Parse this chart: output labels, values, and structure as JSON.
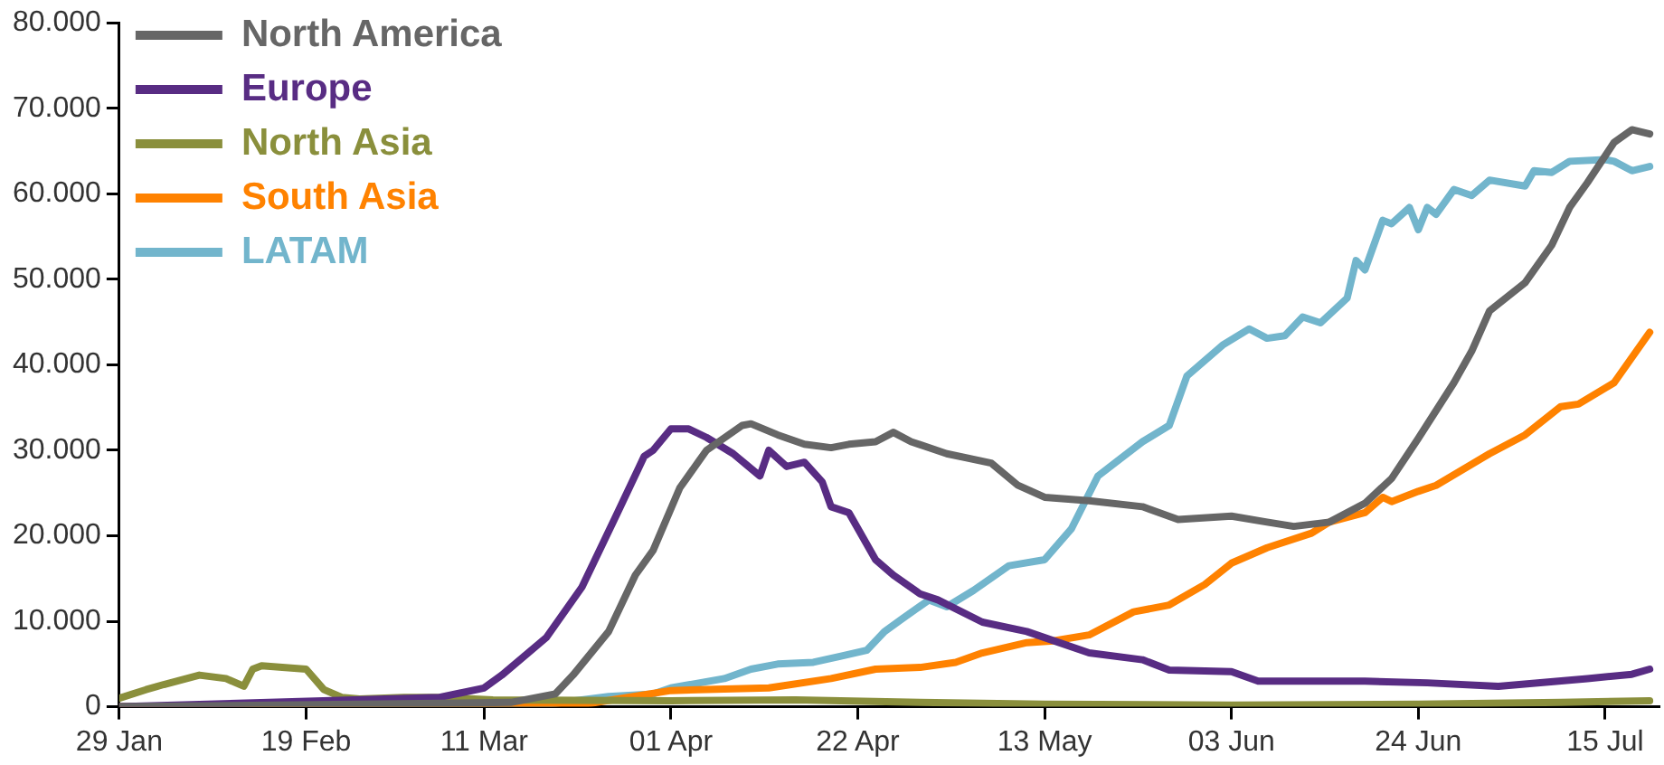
{
  "chart_data": {
    "type": "line",
    "legend": "top left",
    "grid": false,
    "marker": "none",
    "line_style": "solid",
    "xlim": [
      "--01-29",
      "--07-21"
    ],
    "xticks": [
      {
        "value": "--01-29",
        "label": "29 Jan"
      },
      {
        "value": "--02-19",
        "label": "19 Feb"
      },
      {
        "value": "--03-11",
        "label": "11 Mar"
      },
      {
        "value": "--04-01",
        "label": "01 Apr"
      },
      {
        "value": "--04-22",
        "label": "22 Apr"
      },
      {
        "value": "--05-13",
        "label": "13 May"
      },
      {
        "value": "--06-03",
        "label": "03 Jun"
      },
      {
        "value": "--06-24",
        "label": "24 Jun"
      },
      {
        "value": "--07-15",
        "label": "15 Jul"
      }
    ],
    "ylim": [
      0,
      80000
    ],
    "yticks": [
      0,
      {
        "value": 10000,
        "label": "10.000"
      },
      {
        "value": 20000,
        "label": "20.000"
      },
      {
        "value": 30000,
        "label": "30.000"
      },
      {
        "value": 40000,
        "label": "40.000"
      },
      {
        "value": 50000,
        "label": "50.000"
      },
      {
        "value": 60000,
        "label": "60.000"
      },
      {
        "value": 70000,
        "label": "70.000"
      },
      {
        "value": 80000,
        "label": "80.000"
      }
    ],
    "series": [
      {
        "name": "North America",
        "color": "#666666",
        "x": [
          "--01-29",
          "--03-14",
          "--03-19",
          "--03-21",
          "--03-25",
          "--03-28",
          "--03-30",
          "--04-02",
          "--04-05",
          "--04-09",
          "--04-10",
          "--04-13",
          "--04-16",
          "--04-19",
          "--04-21",
          "--04-24",
          "--04-26",
          "--04-28",
          "--05-02",
          "--05-07",
          "--05-10",
          "--05-13",
          "--05-18",
          "--05-24",
          "--05-28",
          "--06-03",
          "--06-07",
          "--06-10",
          "--06-14",
          "--06-18",
          "--06-21",
          "--06-24",
          "--06-28",
          "--06-30",
          "--07-02",
          "--07-06",
          "--07-09",
          "--07-11",
          "--07-13",
          "--07-16",
          "--07-18",
          "--07-20"
        ],
        "values": [
          0,
          500,
          1500,
          3700,
          8800,
          15400,
          18300,
          25600,
          30000,
          32900,
          33100,
          31800,
          30700,
          30300,
          30700,
          31000,
          32100,
          31000,
          29600,
          28500,
          25900,
          24500,
          24100,
          23400,
          21900,
          22300,
          21600,
          21100,
          21600,
          23800,
          26700,
          31400,
          37900,
          41600,
          46300,
          49600,
          54000,
          58400,
          61300,
          66000,
          67500,
          67000
        ]
      },
      {
        "name": "Europe",
        "color": "#582c83",
        "x": [
          "--01-29",
          "--03-06",
          "--03-11",
          "--03-13",
          "--03-18",
          "--03-22",
          "--03-26",
          "--03-29",
          "--03-30",
          "--04-01",
          "--04-03",
          "--04-05",
          "--04-08",
          "--04-11",
          "--04-12",
          "--04-14",
          "--04-16",
          "--04-18",
          "--04-19",
          "--04-21",
          "--04-24",
          "--04-26",
          "--04-29",
          "--05-01",
          "--05-06",
          "--05-11",
          "--05-18",
          "--05-24",
          "--05-27",
          "--06-03",
          "--06-06",
          "--06-18",
          "--06-25",
          "--07-03",
          "--07-13",
          "--07-18",
          "--07-20"
        ],
        "values": [
          0,
          1100,
          2200,
          3700,
          8100,
          14000,
          22700,
          29300,
          30000,
          32500,
          32500,
          31500,
          29600,
          27000,
          30000,
          28100,
          28600,
          26300,
          23400,
          22700,
          17200,
          15400,
          13200,
          12500,
          9900,
          8800,
          6300,
          5500,
          4300,
          4100,
          3000,
          3000,
          2800,
          2400,
          3300,
          3800,
          4400
        ]
      },
      {
        "name": "North Asia",
        "color": "#8a8f3c",
        "x": [
          "--01-29",
          "--02-01",
          "--02-03",
          "--02-07",
          "--02-10",
          "--02-12",
          "--02-13",
          "--02-14",
          "--02-19",
          "--02-21",
          "--02-23",
          "--02-25",
          "--03-02",
          "--03-06",
          "--03-12",
          "--04-01",
          "--04-15",
          "--04-29",
          "--05-13",
          "--06-03",
          "--06-24",
          "--07-10",
          "--07-20"
        ],
        "values": [
          1000,
          2000,
          2600,
          3700,
          3300,
          2400,
          4400,
          4800,
          4400,
          2000,
          1100,
          900,
          1100,
          1100,
          800,
          700,
          800,
          500,
          300,
          200,
          300,
          500,
          700
        ]
      },
      {
        "name": "South Asia",
        "color": "#ff8200",
        "x": [
          "--01-29",
          "--03-16",
          "--03-23",
          "--04-01",
          "--04-12",
          "--04-19",
          "--04-24",
          "--04-29",
          "--05-03",
          "--05-06",
          "--05-11",
          "--05-14",
          "--05-18",
          "--05-23",
          "--05-27",
          "--05-31",
          "--06-03",
          "--06-07",
          "--06-12",
          "--06-14",
          "--06-18",
          "--06-20",
          "--06-21",
          "--06-24",
          "--06-26",
          "--07-02",
          "--07-06",
          "--07-10",
          "--07-12",
          "--07-16",
          "--07-20"
        ],
        "values": [
          0,
          0,
          400,
          1900,
          2200,
          3300,
          4400,
          4600,
          5200,
          6300,
          7500,
          7700,
          8400,
          11100,
          11900,
          14300,
          16800,
          18600,
          20300,
          21600,
          22700,
          24500,
          24000,
          25200,
          25900,
          29600,
          31800,
          35100,
          35400,
          37900,
          43800
        ]
      },
      {
        "name": "LATAM",
        "color": "#72b5cc",
        "x": [
          "--01-29",
          "--03-10",
          "--03-19",
          "--03-25",
          "--03-30",
          "--04-01",
          "--04-07",
          "--04-10",
          "--04-13",
          "--04-17",
          "--04-20",
          "--04-23",
          "--04-25",
          "--04-27",
          "--04-30",
          "--05-02",
          "--05-05",
          "--05-09",
          "--05-13",
          "--05-16",
          "--05-19",
          "--05-24",
          "--05-27",
          "--05-29",
          "--06-02",
          "--06-05",
          "--06-07",
          "--06-09",
          "--06-11",
          "--06-13",
          "--06-16",
          "--06-17",
          "--06-18",
          "--06-20",
          "--06-21",
          "--06-23",
          "--06-24",
          "--06-25",
          "--06-26",
          "--06-28",
          "--06-30",
          "--07-02",
          "--07-06",
          "--07-07",
          "--07-09",
          "--07-11",
          "--07-15",
          "--07-16",
          "--07-18",
          "--07-20"
        ],
        "values": [
          0,
          0,
          400,
          1200,
          1500,
          2200,
          3300,
          4400,
          5000,
          5200,
          5900,
          6600,
          8800,
          10300,
          12500,
          11700,
          13600,
          16500,
          17200,
          20800,
          27000,
          31000,
          32900,
          38700,
          42300,
          44200,
          43100,
          43400,
          45600,
          44900,
          47800,
          52200,
          51100,
          56900,
          56500,
          58400,
          55800,
          58400,
          57600,
          60500,
          59800,
          61600,
          60900,
          62700,
          62500,
          63800,
          64000,
          63800,
          62700,
          63200
        ]
      }
    ]
  }
}
